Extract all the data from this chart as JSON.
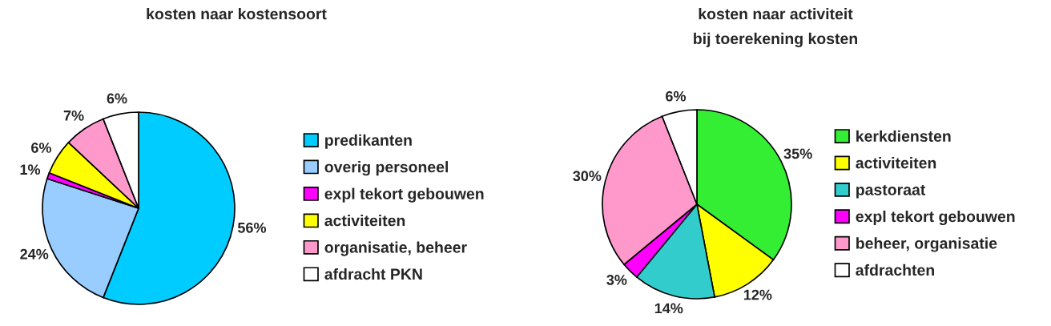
{
  "chart_data": [
    {
      "type": "pie",
      "title": "kosten naar kostensoort",
      "categories": [
        "predikanten",
        "overig personeel",
        "expl tekort gebouwen",
        "activiteiten",
        "organisatie, beheer",
        "afdracht PKN"
      ],
      "values": [
        56,
        24,
        1,
        6,
        7,
        6
      ],
      "value_labels": [
        "56%",
        "24%",
        "1%",
        "6%",
        "7%",
        "6%"
      ],
      "colors": [
        "#00ccff",
        "#99ccff",
        "#ff00ff",
        "#ffff00",
        "#ff99cc",
        "#ffffff"
      ],
      "legend": "right"
    },
    {
      "type": "pie",
      "title": "kosten naar activiteit\nbij toerekening kosten",
      "categories": [
        "kerkdiensten",
        "activiteiten",
        "pastoraat",
        "expl tekort gebouwen",
        "beheer, organisatie",
        "afdrachten"
      ],
      "values": [
        35,
        12,
        14,
        3,
        30,
        6
      ],
      "value_labels": [
        "35%",
        "12%",
        "14%",
        "3%",
        "30%",
        "6%"
      ],
      "colors": [
        "#33ee33",
        "#ffff00",
        "#33cccc",
        "#ff00ff",
        "#ff99cc",
        "#ffffff"
      ],
      "legend": "right"
    }
  ]
}
